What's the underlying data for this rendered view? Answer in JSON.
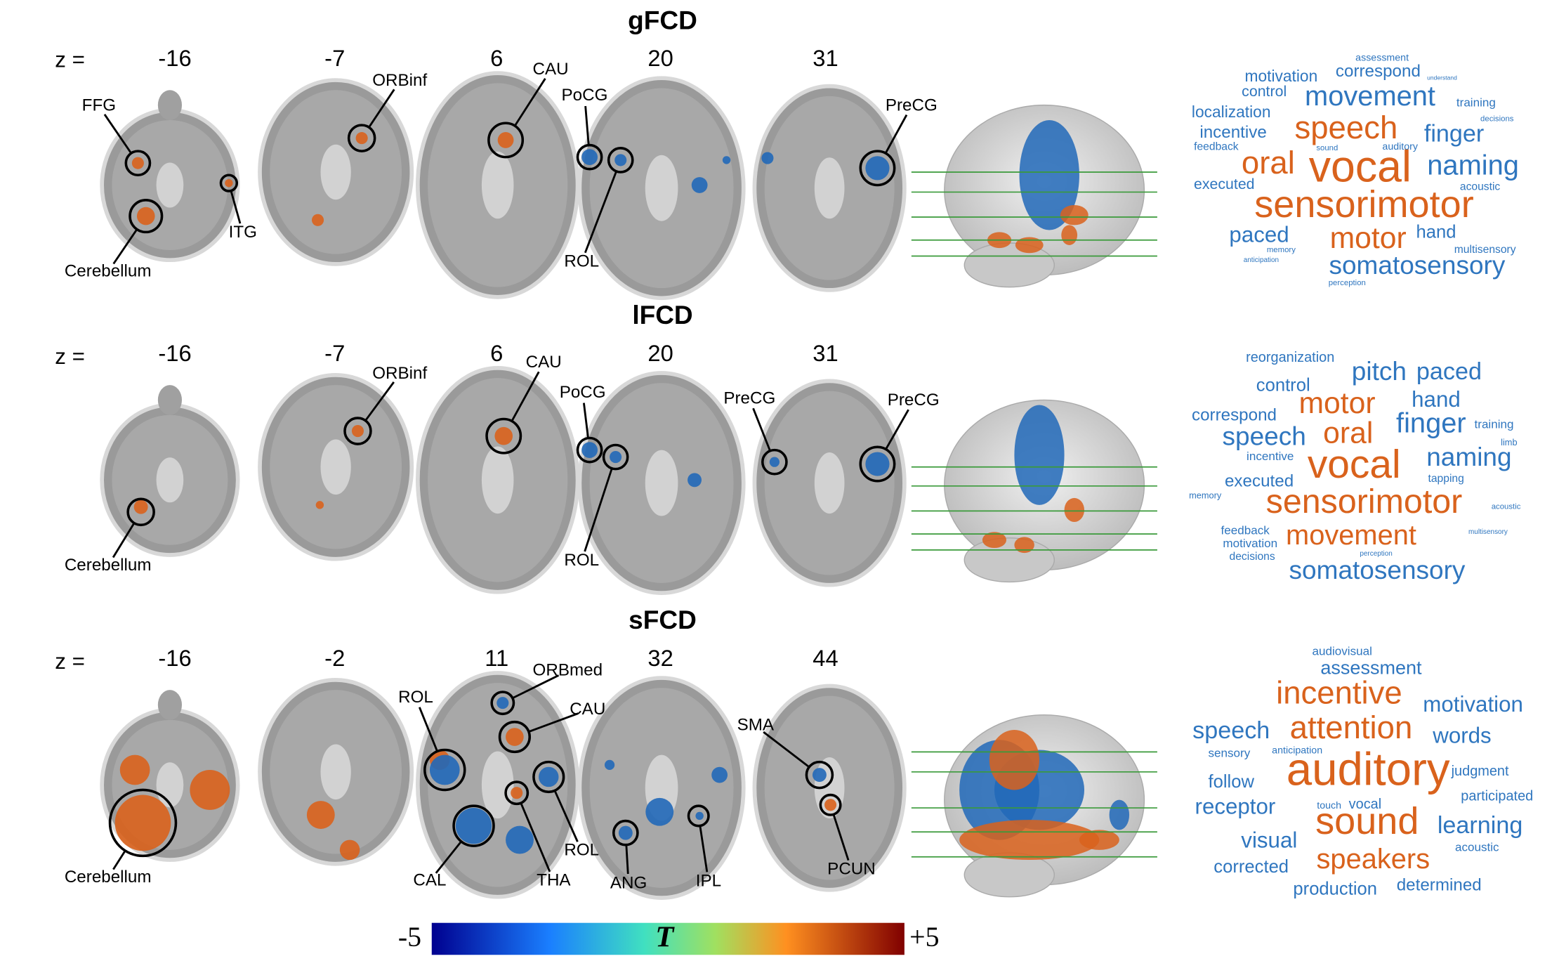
{
  "rows": [
    {
      "title": "gFCD",
      "z_label": "z =",
      "slices": [
        "-16",
        "-7",
        "6",
        "20",
        "31"
      ],
      "regions": [
        "FFG",
        "Cerebellum",
        "ITG",
        "ORBinf",
        "CAU",
        "PoCG",
        "ROL",
        "PreCG"
      ],
      "words": [
        "assessment",
        "motivation",
        "correspond",
        "understand",
        "control",
        "movement",
        "training",
        "localization",
        "speech",
        "finger",
        "incentive",
        "feedback",
        "oral",
        "vocal",
        "naming",
        "executed",
        "acoustic",
        "sensorimotor",
        "paced",
        "motor",
        "hand",
        "multisensory",
        "somatosensory",
        "memory",
        "anticipation",
        "perception",
        "auditory",
        "sound",
        "decisions"
      ]
    },
    {
      "title": "lFCD",
      "z_label": "z =",
      "slices": [
        "-16",
        "-7",
        "6",
        "20",
        "31"
      ],
      "regions": [
        "Cerebellum",
        "ORBinf",
        "CAU",
        "PoCG",
        "ROL",
        "PreCG",
        "PreCG"
      ],
      "words": [
        "reorganization",
        "pitch",
        "paced",
        "control",
        "motor",
        "hand",
        "correspond",
        "finger",
        "training",
        "speech",
        "oral",
        "incentive",
        "naming",
        "vocal",
        "executed",
        "tapping",
        "sensorimotor",
        "memory",
        "acoustic",
        "feedback",
        "motivation",
        "movement",
        "decisions",
        "somatosensory",
        "limb",
        "multisensory",
        "perception"
      ]
    },
    {
      "title": "sFCD",
      "z_label": "z =",
      "slices": [
        "-16",
        "-2",
        "11",
        "32",
        "44"
      ],
      "regions": [
        "Cerebellum",
        "ROL",
        "ORBmed",
        "CAU",
        "CAL",
        "THA",
        "ROL",
        "ANG",
        "IPL",
        "SMA",
        "PCUN"
      ],
      "words": [
        "audiovisual",
        "assessment",
        "incentive",
        "motivation",
        "speech",
        "attention",
        "words",
        "sensory",
        "anticipation",
        "auditory",
        "judgment",
        "follow",
        "receptor",
        "participated",
        "touch",
        "vocal",
        "sound",
        "learning",
        "visual",
        "acoustic",
        "corrected",
        "speakers",
        "production",
        "determined"
      ]
    }
  ],
  "colorbar": {
    "min": "-5",
    "label": "T",
    "max": "+5"
  }
}
